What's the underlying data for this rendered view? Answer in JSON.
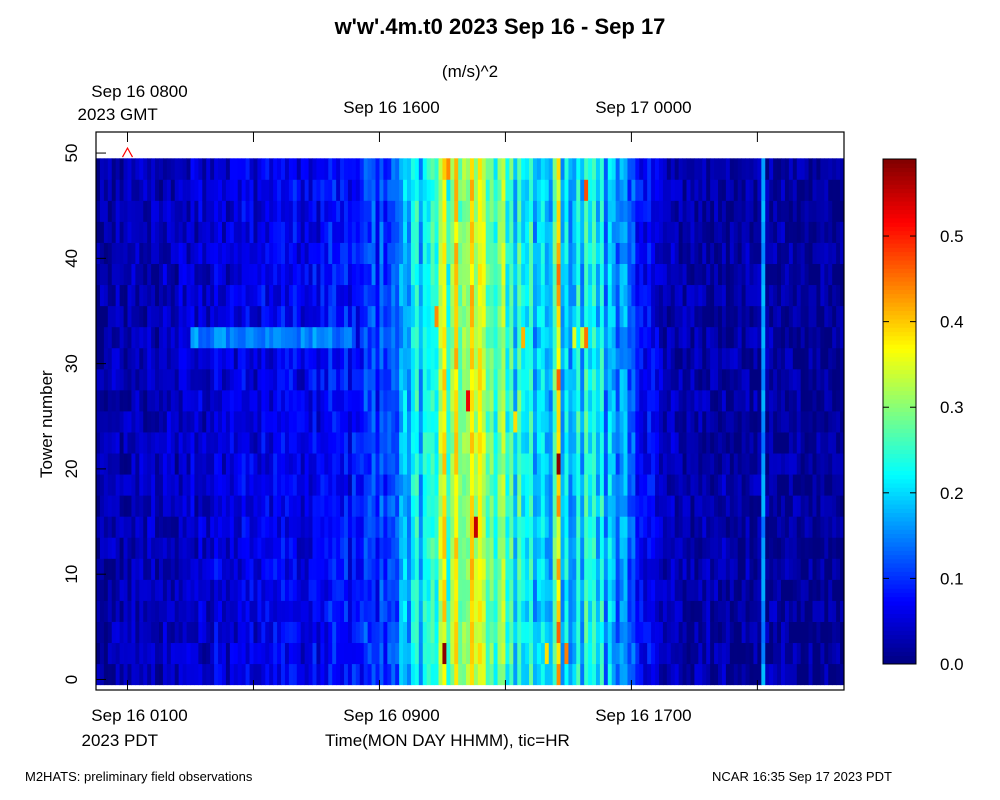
{
  "chart_data": {
    "type": "heatmap",
    "title": "w'w'.4m.t0 2023 Sep 16 - Sep 17",
    "colorbar_label": "(m/s)^2",
    "ylabel": "Tower number",
    "xlabel": "Time(MON DAY HHMM), tic=HR",
    "ylim": [
      -1,
      52
    ],
    "y_ticks": [
      0,
      10,
      20,
      30,
      40,
      50
    ],
    "y_tick_labels": [
      "0",
      "10",
      "20",
      "30",
      "40",
      "50"
    ],
    "colorbar_range": [
      0.0,
      0.59
    ],
    "colorbar_ticks": [
      0.0,
      0.1,
      0.2,
      0.3,
      0.4,
      0.5
    ],
    "colorbar_tick_labels": [
      "0.0",
      "0.1",
      "0.2",
      "0.3",
      "0.4",
      "0.5"
    ],
    "x_range_hours_pdt": [
      0.0,
      23.75
    ],
    "x_ticks_hours_pdt": [
      1,
      5,
      9,
      13,
      17,
      21
    ],
    "bottom_axis_labels": [
      {
        "hour": 1,
        "line1": "Sep 16 0100",
        "line2": "2023 PDT"
      },
      {
        "hour": 9,
        "line1": "Sep 16 0900",
        "line2": ""
      },
      {
        "hour": 17,
        "line1": "Sep 16 1700",
        "line2": ""
      }
    ],
    "top_axis_labels": [
      {
        "hour": 1,
        "line1": "Sep 16 0800",
        "line2": "2023 GMT"
      },
      {
        "hour": 9,
        "line1": "Sep 16 1600",
        "line2": ""
      },
      {
        "hour": 17,
        "line1": "Sep 17 0000",
        "line2": ""
      }
    ],
    "towers": [
      0,
      49
    ],
    "time_profile_hours": [
      0,
      2,
      4,
      6,
      8,
      9,
      10,
      11,
      12,
      13,
      14,
      15,
      16,
      17,
      18,
      20,
      21,
      23.75
    ],
    "time_profile_values": [
      0.02,
      0.03,
      0.05,
      0.06,
      0.07,
      0.1,
      0.18,
      0.28,
      0.3,
      0.25,
      0.2,
      0.21,
      0.18,
      0.12,
      0.03,
      0.02,
      0.02,
      0.01
    ],
    "notable_features": [
      {
        "label": "elevated band at tower 33",
        "tower": 33,
        "hours": [
          3,
          8
        ],
        "value": 0.15
      },
      {
        "label": "bright vertical streak",
        "hour": 14.6,
        "value": 0.4
      },
      {
        "label": "narrow streak",
        "hour": 21.1,
        "value": 0.16
      }
    ],
    "marker": {
      "symbol": "^",
      "hour": 1,
      "tower": 50,
      "color": "#ff0000"
    },
    "colors": {
      "low": "#00008f",
      "high": "#800000"
    }
  },
  "footer": {
    "left": "M2HATS: preliminary field observations",
    "right": "NCAR 16:35 Sep 17 2023 PDT"
  }
}
